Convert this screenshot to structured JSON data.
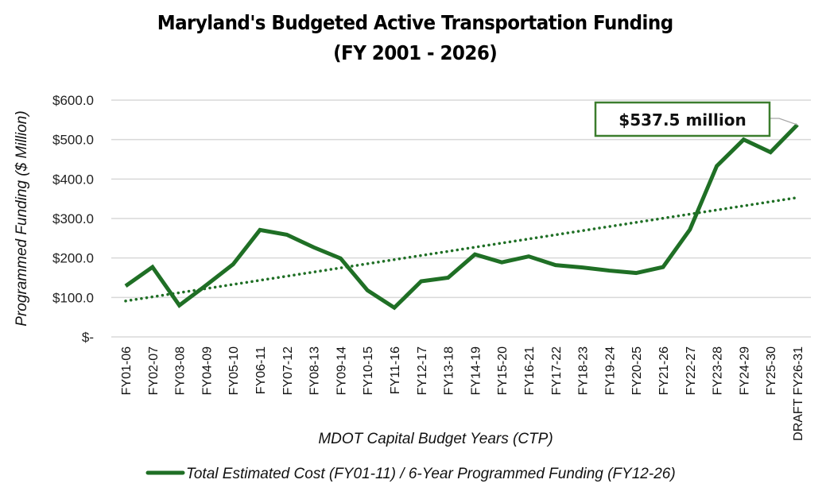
{
  "chart_data": {
    "type": "line",
    "title": "Maryland's Budgeted Active Transportation Funding",
    "subtitle": "(FY 2001 - 2026)",
    "xlabel": "MDOT Capital Budget Years (CTP)",
    "ylabel": "Programmed Funding ($ Million)",
    "ylim": [
      0,
      600
    ],
    "yticks": [
      0,
      100,
      200,
      300,
      400,
      500,
      600
    ],
    "ytick_labels": [
      "$-",
      "$100.0",
      "$200.0",
      "$300.0",
      "$400.0",
      "$500.0",
      "$600.0"
    ],
    "grid": true,
    "legend_position": "bottom",
    "categories": [
      "FY01-06",
      "FY02-07",
      "FY03-08",
      "FY04-09",
      "FY05-10",
      "FY06-11",
      "FY07-12",
      "FY08-13",
      "FY09-14",
      "FY10-15",
      "FY11-16",
      "FY12-17",
      "FY13-18",
      "FY14-19",
      "FY15-20",
      "FY16-21",
      "FY17-22",
      "FY18-23",
      "FY19-24",
      "FY20-25",
      "FY21-26",
      "FY22-27",
      "FY23-28",
      "FY24-29",
      "FY25-30",
      "DRAFT FY26-31"
    ],
    "series": [
      {
        "name": "Total Estimated Cost (FY01-11) / 6-Year Programmed Funding (FY12-26)",
        "color": "#1f6f25",
        "values": [
          129,
          177,
          80,
          131,
          184,
          271,
          259,
          227,
          199,
          118,
          74,
          141,
          150,
          209,
          189,
          204,
          182,
          176,
          168,
          162,
          177,
          272,
          433,
          500,
          468,
          537.5
        ]
      }
    ],
    "trendline": {
      "type": "linear",
      "style": "dotted",
      "color": "#1f6f25",
      "start_value": 91,
      "end_value": 353
    },
    "annotations": [
      {
        "text": "$537.5 million",
        "category": "DRAFT FY26-31",
        "value": 537.5,
        "border_color": "#3b7d2d"
      }
    ]
  }
}
